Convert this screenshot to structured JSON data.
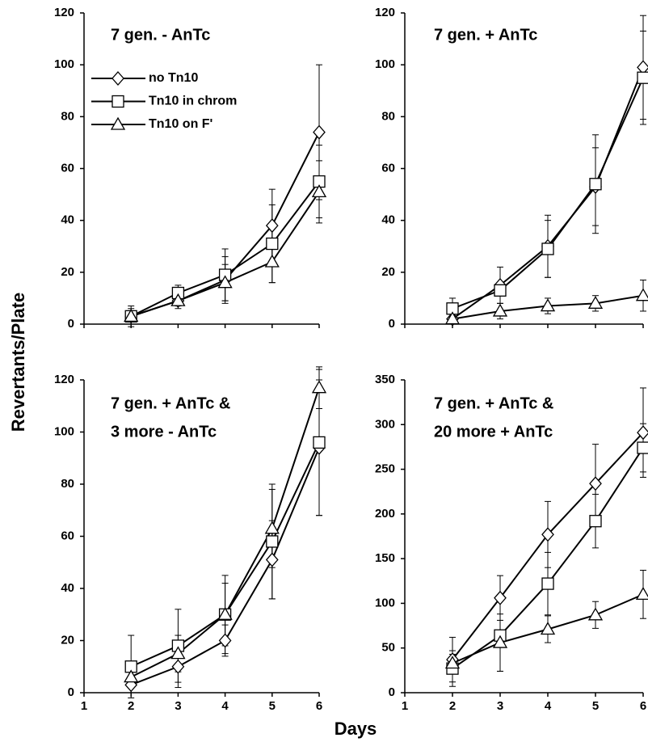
{
  "ylabel": "Revertants/Plate",
  "xlabel": "Days",
  "chart_data": [
    {
      "type": "line",
      "title": [
        "7 gen. - AnTc"
      ],
      "x": [
        2,
        3,
        4,
        5,
        6
      ],
      "xlim": [
        1,
        6
      ],
      "xticks": [
        1,
        2,
        3,
        4,
        5,
        6
      ],
      "xtick_labels": false,
      "ylim": [
        0,
        120
      ],
      "yticks": [
        0,
        20,
        40,
        60,
        80,
        100,
        120
      ],
      "legend": true,
      "series": [
        {
          "name": "no Tn10",
          "marker": "diamond",
          "color": "#000000",
          "values": [
            3,
            9,
            17,
            38,
            74
          ],
          "errors": [
            4,
            3,
            9,
            14,
            26
          ]
        },
        {
          "name": "Tn10 in chrom",
          "marker": "square",
          "color": "#000000",
          "values": [
            3,
            12,
            19,
            31,
            55
          ],
          "errors": [
            3,
            3,
            10,
            15,
            14
          ]
        },
        {
          "name": "Tn10 on F'",
          "marker": "triangle",
          "color": "#000000",
          "values": [
            3,
            9,
            16,
            24,
            51
          ],
          "errors": [
            2,
            2,
            7,
            8,
            12
          ]
        }
      ]
    },
    {
      "type": "line",
      "title": [
        "7 gen. + AnTc"
      ],
      "x": [
        2,
        3,
        4,
        5,
        6
      ],
      "xlim": [
        1,
        6
      ],
      "xticks": [
        1,
        2,
        3,
        4,
        5,
        6
      ],
      "xtick_labels": false,
      "ylim": [
        0,
        120
      ],
      "yticks": [
        0,
        20,
        40,
        60,
        80,
        100,
        120
      ],
      "legend": false,
      "series": [
        {
          "marker": "diamond",
          "color": "#000000",
          "values": [
            2,
            15,
            30,
            53,
            99
          ],
          "errors": [
            1,
            7,
            12,
            15,
            20
          ]
        },
        {
          "marker": "square",
          "color": "#000000",
          "values": [
            6,
            13,
            29,
            54,
            95
          ],
          "errors": [
            4,
            2,
            11,
            19,
            18
          ]
        },
        {
          "marker": "triangle",
          "color": "#000000",
          "values": [
            2,
            5,
            7,
            8,
            11
          ],
          "errors": [
            1,
            3,
            3,
            3,
            6
          ]
        }
      ]
    },
    {
      "type": "line",
      "title": [
        "7 gen. + AnTc &",
        "3 more - AnTc"
      ],
      "x": [
        2,
        3,
        4,
        5,
        6
      ],
      "xlim": [
        1,
        6
      ],
      "xticks": [
        1,
        2,
        3,
        4,
        5,
        6
      ],
      "xtick_labels": true,
      "ylim": [
        0,
        120
      ],
      "yticks": [
        0,
        20,
        40,
        60,
        80,
        100,
        120
      ],
      "legend": false,
      "series": [
        {
          "marker": "diamond",
          "color": "#000000",
          "values": [
            3,
            10,
            20,
            51,
            94
          ],
          "errors": [
            3,
            8,
            6,
            15,
            26
          ]
        },
        {
          "marker": "square",
          "color": "#000000",
          "values": [
            10,
            18,
            30,
            58,
            96
          ],
          "errors": [
            12,
            14,
            15,
            22,
            28
          ]
        },
        {
          "marker": "triangle",
          "color": "#000000",
          "values": [
            6,
            15,
            30,
            63,
            117
          ],
          "errors": [
            4,
            7,
            12,
            15,
            8
          ]
        }
      ]
    },
    {
      "type": "line",
      "title": [
        "7 gen. + AnTc &",
        "20 more + AnTc"
      ],
      "x": [
        2,
        3,
        4,
        5,
        6
      ],
      "xlim": [
        1,
        6
      ],
      "xticks": [
        1,
        2,
        3,
        4,
        5,
        6
      ],
      "xtick_labels": true,
      "ylim": [
        0,
        350
      ],
      "yticks": [
        0,
        50,
        100,
        150,
        200,
        250,
        300,
        350
      ],
      "legend": false,
      "series": [
        {
          "marker": "diamond",
          "color": "#000000",
          "values": [
            37,
            106,
            177,
            234,
            291
          ],
          "errors": [
            25,
            25,
            37,
            44,
            50
          ]
        },
        {
          "marker": "square",
          "color": "#000000",
          "values": [
            27,
            64,
            122,
            192,
            274
          ],
          "errors": [
            20,
            40,
            35,
            30,
            27
          ]
        },
        {
          "marker": "triangle",
          "color": "#000000",
          "values": [
            33,
            56,
            71,
            87,
            110
          ],
          "errors": [
            10,
            32,
            15,
            15,
            27
          ]
        }
      ]
    }
  ]
}
